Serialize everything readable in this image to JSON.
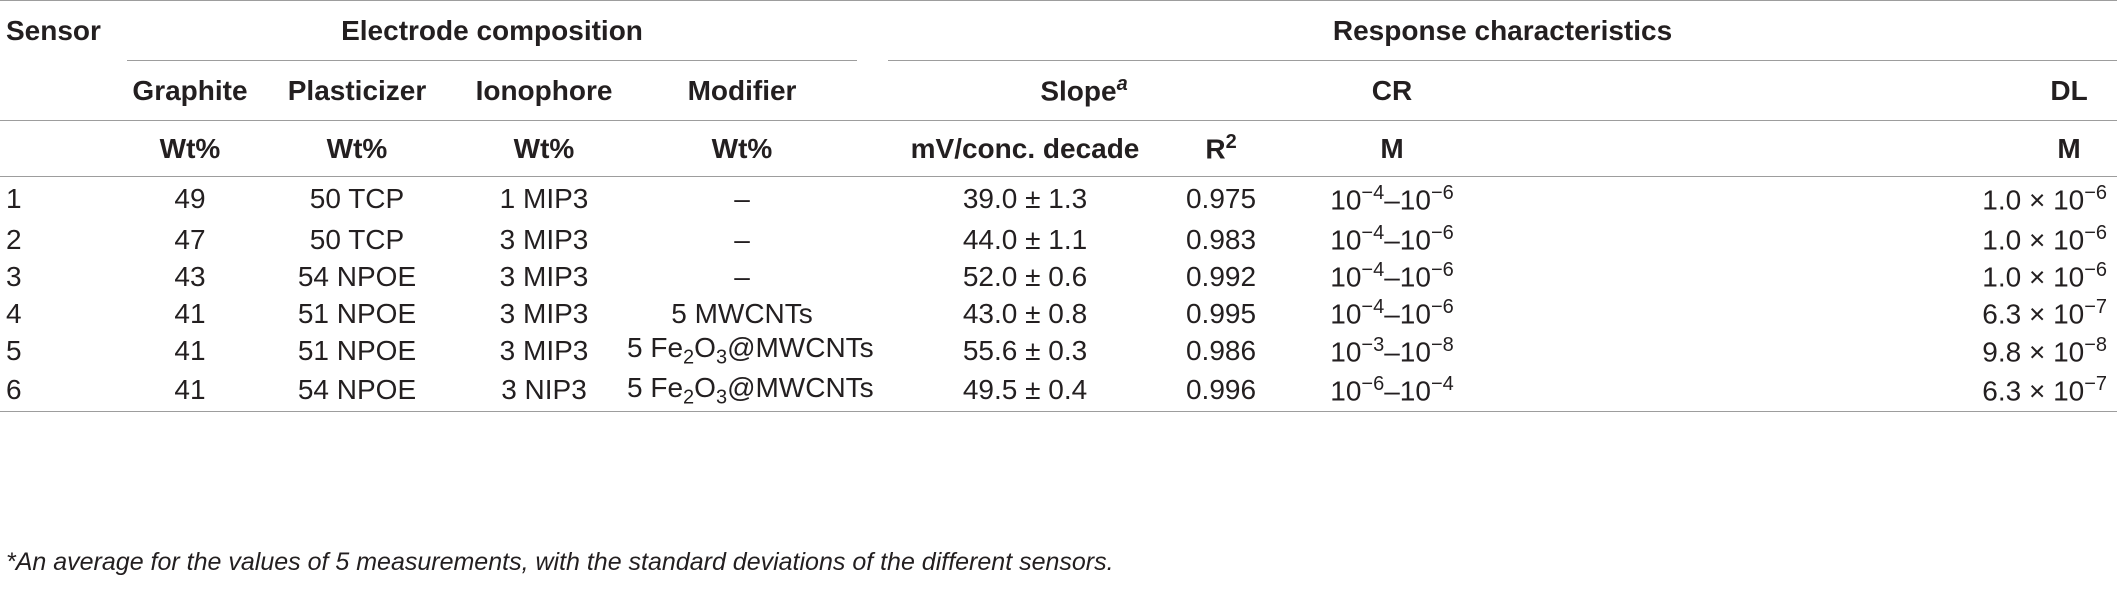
{
  "headers": {
    "sensor": "Sensor",
    "electrode_composition": "Electrode composition",
    "response_characteristics": "Response characteristics",
    "graphite": "Graphite",
    "plasticizer": "Plasticizer",
    "ionophore": "Ionophore",
    "modifier": "Modifier",
    "slope": "Slope",
    "slope_sup": "a",
    "cr": "CR",
    "dl": "DL",
    "unit_graphite": "Wt%",
    "unit_plasticizer": "Wt%",
    "unit_ionophore": "Wt%",
    "unit_modifier": "Wt%",
    "unit_slope": "mV/conc. decade",
    "r2_base": "R",
    "r2_sup": "2",
    "unit_cr": "M",
    "unit_dl": "M"
  },
  "rows": [
    {
      "sensor": "1",
      "graphite": "49",
      "plasticizer": "50 TCP",
      "ionophore": "1 MIP3",
      "modifier": "–",
      "slope": "39.0 ± 1.3",
      "r2": "0.975",
      "cr_a": "10",
      "cr_a_exp": "−4",
      "cr_sep": "–10",
      "cr_b_exp": "−6",
      "dl_mant": "1.0 × 10",
      "dl_exp": "−6"
    },
    {
      "sensor": "2",
      "graphite": "47",
      "plasticizer": "50 TCP",
      "ionophore": "3 MIP3",
      "modifier": "–",
      "slope": "44.0 ± 1.1",
      "r2": "0.983",
      "cr_a": "10",
      "cr_a_exp": "−4",
      "cr_sep": "–10",
      "cr_b_exp": "−6",
      "dl_mant": "1.0 × 10",
      "dl_exp": "−6"
    },
    {
      "sensor": "3",
      "graphite": "43",
      "plasticizer": "54 NPOE",
      "ionophore": "3 MIP3",
      "modifier": "–",
      "slope": "52.0 ± 0.6",
      "r2": "0.992",
      "cr_a": "10",
      "cr_a_exp": "−4",
      "cr_sep": "–10",
      "cr_b_exp": "−6",
      "dl_mant": "1.0 × 10",
      "dl_exp": "−6"
    },
    {
      "sensor": "4",
      "graphite": "41",
      "plasticizer": "51 NPOE",
      "ionophore": "3 MIP3",
      "modifier": "5 MWCNTs",
      "slope": "43.0 ± 0.8",
      "r2": "0.995",
      "cr_a": "10",
      "cr_a_exp": "−4",
      "cr_sep": "–10",
      "cr_b_exp": "−6",
      "dl_mant": "6.3 × 10",
      "dl_exp": "−7"
    },
    {
      "sensor": "5",
      "graphite": "41",
      "plasticizer": "51 NPOE",
      "ionophore": "3 MIP3",
      "modifier_pre": "5 Fe",
      "modifier_sub1": "2",
      "modifier_mid": "O",
      "modifier_sub2": "3",
      "modifier_post": "@MWCNTs",
      "slope": "55.6 ± 0.3",
      "r2": "0.986",
      "cr_a": "10",
      "cr_a_exp": "−3",
      "cr_sep": "–10",
      "cr_b_exp": "−8",
      "dl_mant": "9.8 × 10",
      "dl_exp": "−8"
    },
    {
      "sensor": "6",
      "graphite": "41",
      "plasticizer": "54 NPOE",
      "ionophore": "3 NIP3",
      "modifier_pre": "5 Fe",
      "modifier_sub1": "2",
      "modifier_mid": "O",
      "modifier_sub2": "3",
      "modifier_post": "@MWCNTs",
      "slope": "49.5 ± 0.4",
      "r2": "0.996",
      "cr_a": "10",
      "cr_a_exp": "−6",
      "cr_sep": "–10",
      "cr_b_exp": "−4",
      "dl_mant": "6.3 × 10",
      "dl_exp": "−7"
    }
  ],
  "footnote": "*An average for the values of 5 measurements, with the standard deviations of the different sensors."
}
